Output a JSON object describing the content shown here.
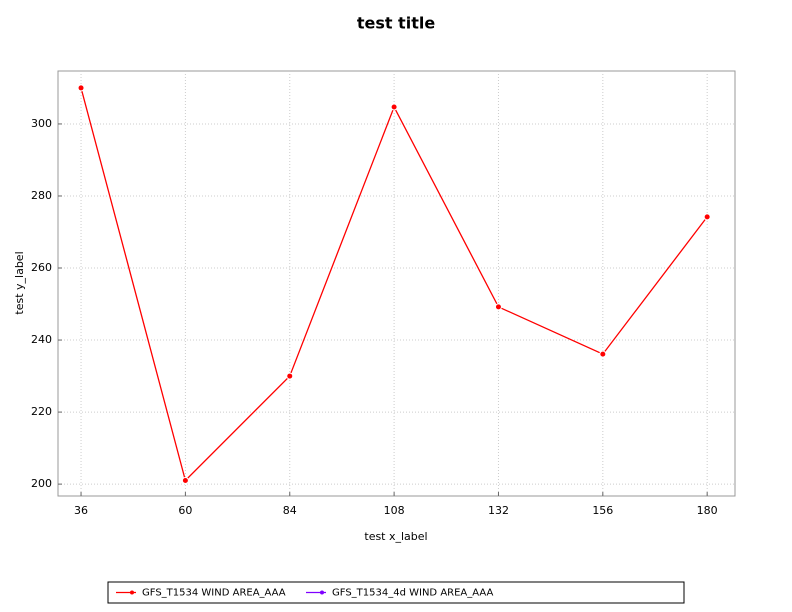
{
  "chart_data": {
    "type": "line",
    "title": "test title",
    "x_label": "test x_label",
    "y_label": "test y_label",
    "x": [
      36,
      60,
      84,
      108,
      132,
      156,
      180
    ],
    "series": [
      {
        "name": "GFS_T1534 WIND AREA_AAA",
        "color": "#ff0000",
        "values": [
          310,
          201,
          230,
          304.7,
          249.2,
          236.1,
          274.2
        ]
      },
      {
        "name": "GFS_T1534_4d WIND AREA_AAA",
        "color": "#7f00ff",
        "values": [
          null,
          null,
          null,
          null,
          null,
          null,
          null
        ]
      }
    ],
    "xlim": [
      30.7,
      186.4
    ],
    "xticks": [
      36,
      60,
      84,
      108,
      132,
      156,
      180
    ],
    "ylim": [
      196.7,
      314.7
    ],
    "yticks": [
      200,
      220,
      240,
      260,
      280,
      300
    ],
    "grid": true,
    "legend": "bottom"
  }
}
